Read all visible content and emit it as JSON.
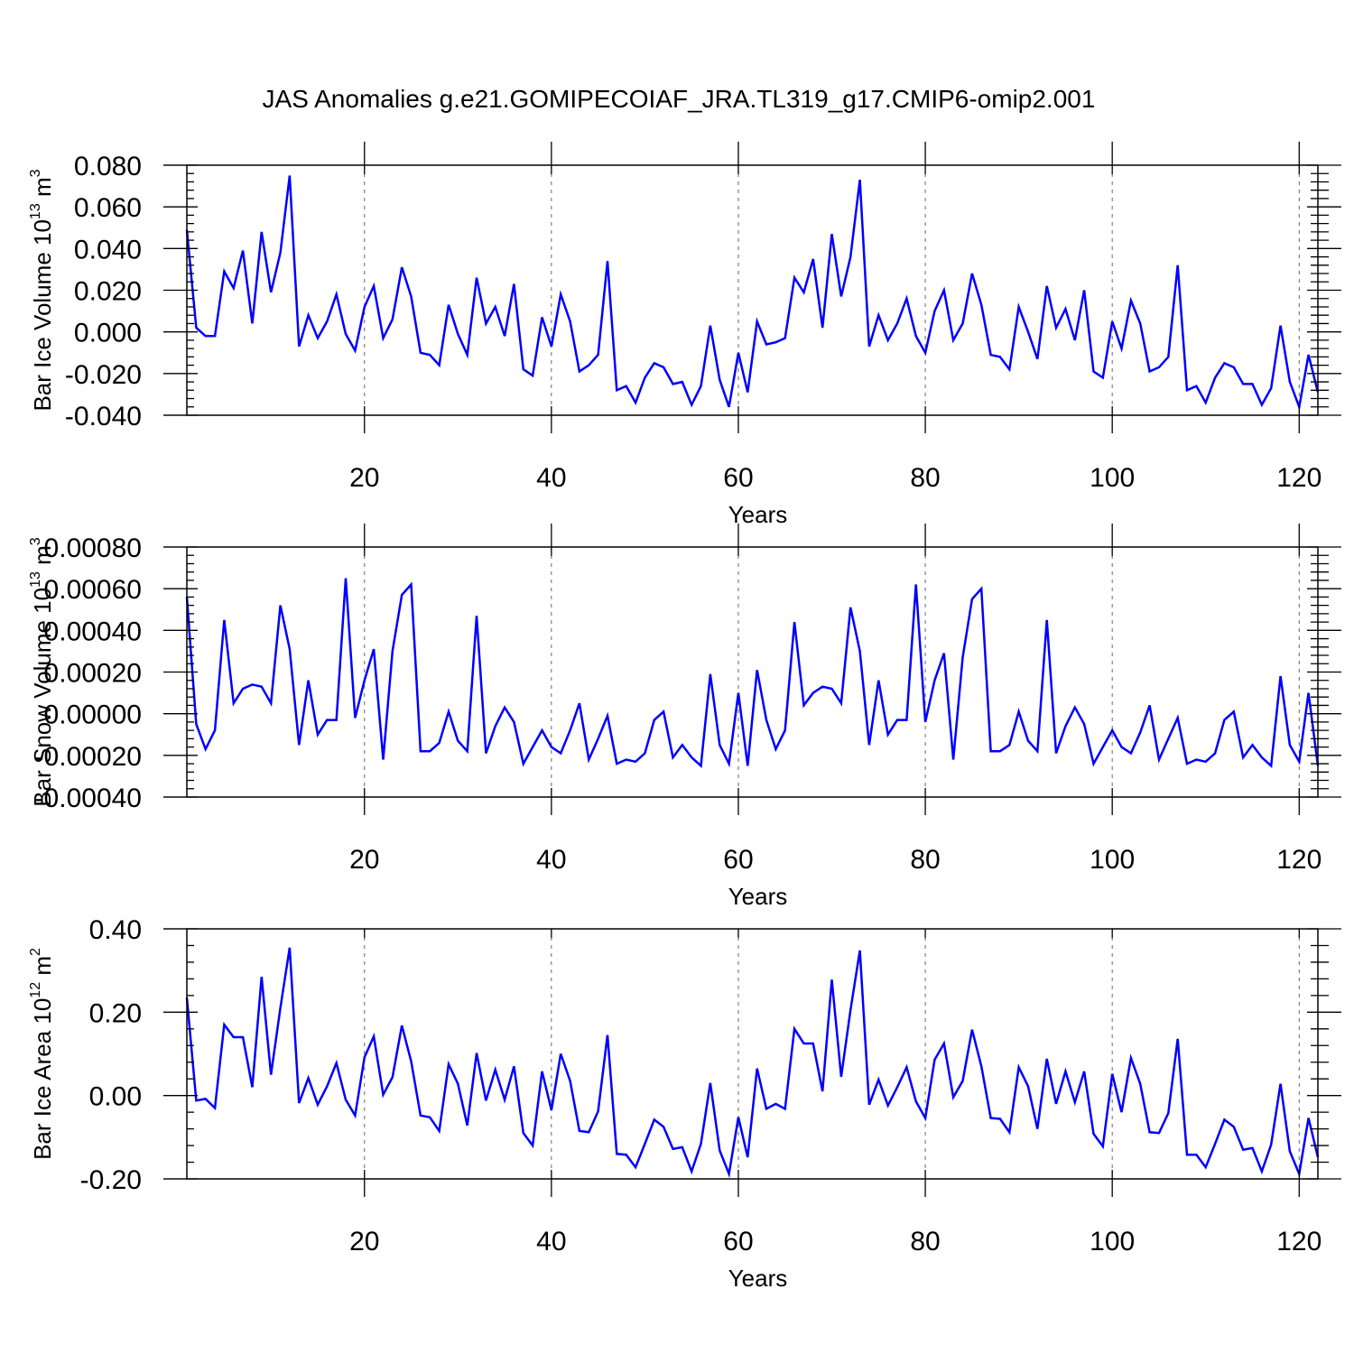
{
  "title": "JAS Anomalies g.e21.GOMIPECOIAF_JRA.TL319_g17.CMIP6-omip2.001",
  "colors": {
    "series": "#0000ff",
    "axes": "#000000",
    "grid": "#666666"
  },
  "chart_data": [
    {
      "type": "line",
      "ylabel": "Bar Ice Volume 10",
      "ylabel_sup": "13",
      "ylabel_unit": " m",
      "ylabel_unit_sup": "3",
      "xlabel": "Years",
      "xlim": [
        1,
        122
      ],
      "ylim": [
        -0.04,
        0.08
      ],
      "yticks": [
        -0.04,
        -0.02,
        0.0,
        0.02,
        0.04,
        0.06,
        0.08
      ],
      "ytick_labels": [
        "-0.040",
        "-0.020",
        "0.000",
        "0.020",
        "0.040",
        "0.060",
        "0.080"
      ],
      "xticks": [
        20,
        40,
        60,
        80,
        100,
        120
      ],
      "xtick_labels": [
        "20",
        "40",
        "60",
        "80",
        "100",
        "120"
      ],
      "grid_x": [
        20,
        40,
        60,
        80,
        100,
        120
      ],
      "x_start": 1,
      "values": [
        0.049,
        0.002,
        -0.002,
        -0.002,
        0.029,
        0.021,
        0.039,
        0.004,
        0.048,
        0.019,
        0.038,
        0.075,
        -0.007,
        0.008,
        -0.003,
        0.005,
        0.018,
        -0.001,
        -0.009,
        0.012,
        0.022,
        -0.003,
        0.006,
        0.031,
        0.017,
        -0.01,
        -0.011,
        -0.016,
        0.013,
        -0.001,
        -0.011,
        0.026,
        0.004,
        0.012,
        -0.002,
        0.023,
        -0.018,
        -0.021,
        0.007,
        -0.007,
        0.018,
        0.005,
        -0.019,
        -0.016,
        -0.011,
        0.034,
        -0.028,
        -0.026,
        -0.034,
        -0.022,
        -0.015,
        -0.017,
        -0.025,
        -0.024,
        -0.035,
        -0.026,
        0.003,
        -0.023,
        -0.036,
        -0.01,
        -0.029,
        0.005,
        -0.006,
        -0.005,
        -0.003,
        0.026,
        0.019,
        0.035,
        0.002,
        0.047,
        0.017,
        0.036,
        0.073,
        -0.007,
        0.008,
        -0.004,
        0.004,
        0.016,
        -0.002,
        -0.01,
        0.01,
        0.02,
        -0.004,
        0.004,
        0.028,
        0.013,
        -0.011,
        -0.012,
        -0.018,
        0.012,
        0.0,
        -0.013,
        0.022,
        0.002,
        0.011,
        -0.004,
        0.02,
        -0.019,
        -0.022,
        0.005,
        -0.008,
        0.015,
        0.004,
        -0.019,
        -0.017,
        -0.012,
        0.032,
        -0.028,
        -0.026,
        -0.034,
        -0.022,
        -0.015,
        -0.017,
        -0.025,
        -0.025,
        -0.035,
        -0.027,
        0.003,
        -0.024,
        -0.036,
        -0.011,
        -0.029
      ]
    },
    {
      "type": "line",
      "ylabel": "Bar Snow Volume 10",
      "ylabel_sup": "13",
      "ylabel_unit": " m",
      "ylabel_unit_sup": "3",
      "xlabel": "Years",
      "xlim": [
        1,
        122
      ],
      "ylim": [
        -0.0004,
        0.0008
      ],
      "yticks": [
        -0.0004,
        -0.0002,
        0.0,
        0.0002,
        0.0004,
        0.0006,
        0.0008
      ],
      "ytick_labels": [
        "-0.00040",
        "-0.00020",
        "0.00000",
        "0.00020",
        "0.00040",
        "0.00060",
        "0.00080"
      ],
      "xticks": [
        20,
        40,
        60,
        80,
        100,
        120
      ],
      "xtick_labels": [
        "20",
        "40",
        "60",
        "80",
        "100",
        "120"
      ],
      "grid_x": [
        20,
        40,
        60,
        80,
        100,
        120
      ],
      "x_start": 1,
      "values": [
        0.00056,
        -5e-05,
        -0.00017,
        -8e-05,
        0.00045,
        5e-05,
        0.00012,
        0.00014,
        0.00013,
        5e-05,
        0.00052,
        0.00031,
        -0.00015,
        0.00016,
        -0.0001,
        -3e-05,
        -3e-05,
        0.00065,
        -2e-05,
        0.00016,
        0.00031,
        -0.00022,
        0.0003,
        0.00057,
        0.00062,
        -0.00018,
        -0.00018,
        -0.00014,
        1e-05,
        -0.00013,
        -0.00018,
        0.00047,
        -0.00019,
        -6e-05,
        3e-05,
        -4e-05,
        -0.00024,
        -0.00016,
        -8e-05,
        -0.00016,
        -0.00019,
        -8e-05,
        5e-05,
        -0.00022,
        -0.00012,
        -1e-05,
        -0.00024,
        -0.00022,
        -0.00023,
        -0.00019,
        -3e-05,
        1e-05,
        -0.00021,
        -0.00015,
        -0.00021,
        -0.00025,
        0.00019,
        -0.00015,
        -0.00024,
        0.0001,
        -0.00025,
        0.00021,
        -3e-05,
        -0.00017,
        -8e-05,
        0.00044,
        4e-05,
        0.0001,
        0.00013,
        0.00012,
        5e-05,
        0.00051,
        0.0003,
        -0.00015,
        0.00016,
        -0.0001,
        -3e-05,
        -3e-05,
        0.00062,
        -4e-05,
        0.00016,
        0.00029,
        -0.00022,
        0.00027,
        0.00055,
        0.0006,
        -0.00018,
        -0.00018,
        -0.00015,
        1e-05,
        -0.00013,
        -0.00018,
        0.00045,
        -0.00019,
        -6e-05,
        3e-05,
        -5e-05,
        -0.00024,
        -0.00016,
        -8e-05,
        -0.00016,
        -0.00019,
        -9e-05,
        4e-05,
        -0.00022,
        -0.00012,
        -2e-05,
        -0.00024,
        -0.00022,
        -0.00023,
        -0.00019,
        -3e-05,
        1e-05,
        -0.00021,
        -0.00015,
        -0.00021,
        -0.00025,
        0.00018,
        -0.00015,
        -0.00023,
        0.0001,
        -0.00025
      ]
    },
    {
      "type": "line",
      "ylabel": "Bar Ice Area 10",
      "ylabel_sup": "12",
      "ylabel_unit": " m",
      "ylabel_unit_sup": "2",
      "xlabel": "Years",
      "xlim": [
        1,
        122
      ],
      "ylim": [
        -0.2,
        0.4
      ],
      "yticks": [
        -0.2,
        0.0,
        0.2,
        0.4
      ],
      "ytick_labels": [
        "-0.20",
        "0.00",
        "0.20",
        "0.40"
      ],
      "xticks": [
        20,
        40,
        60,
        80,
        100,
        120
      ],
      "xtick_labels": [
        "20",
        "40",
        "60",
        "80",
        "100",
        "120"
      ],
      "grid_x": [
        20,
        40,
        60,
        80,
        100,
        120
      ],
      "x_start": 1,
      "values": [
        0.235,
        -0.012,
        -0.008,
        -0.03,
        0.17,
        0.14,
        0.14,
        0.02,
        0.285,
        0.05,
        0.21,
        0.355,
        -0.018,
        0.042,
        -0.022,
        0.022,
        0.078,
        -0.01,
        -0.048,
        0.092,
        0.142,
        0.002,
        0.044,
        0.168,
        0.082,
        -0.048,
        -0.052,
        -0.085,
        0.075,
        0.028,
        -0.072,
        0.102,
        -0.012,
        0.062,
        -0.01,
        0.07,
        -0.09,
        -0.12,
        0.058,
        -0.035,
        0.1,
        0.035,
        -0.085,
        -0.088,
        -0.038,
        0.145,
        -0.14,
        -0.142,
        -0.172,
        -0.116,
        -0.058,
        -0.075,
        -0.128,
        -0.124,
        -0.182,
        -0.116,
        0.03,
        -0.132,
        -0.188,
        -0.052,
        -0.148,
        0.065,
        -0.032,
        -0.02,
        -0.032,
        0.16,
        0.125,
        0.125,
        0.01,
        0.278,
        0.045,
        0.205,
        0.348,
        -0.022,
        0.038,
        -0.024,
        0.02,
        0.068,
        -0.014,
        -0.054,
        0.086,
        0.125,
        -0.004,
        0.035,
        0.158,
        0.07,
        -0.054,
        -0.056,
        -0.088,
        0.068,
        0.022,
        -0.08,
        0.088,
        -0.02,
        0.058,
        -0.016,
        0.058,
        -0.092,
        -0.122,
        0.052,
        -0.04,
        0.09,
        0.028,
        -0.088,
        -0.09,
        -0.042,
        0.136,
        -0.142,
        -0.142,
        -0.172,
        -0.116,
        -0.058,
        -0.075,
        -0.13,
        -0.126,
        -0.182,
        -0.118,
        0.028,
        -0.134,
        -0.188,
        -0.054,
        -0.148
      ]
    }
  ]
}
